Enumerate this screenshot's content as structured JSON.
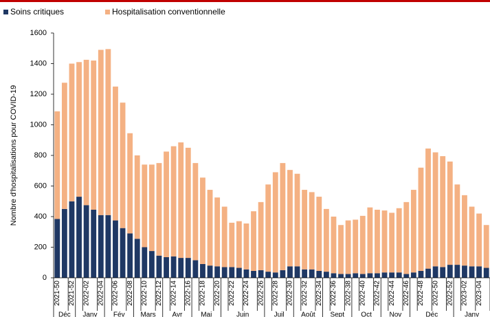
{
  "chart_data": {
    "type": "stacked_bar",
    "y_label": "Nombre d'hospitalisations pour COVID-19",
    "categories": [
      "2021-50",
      null,
      "2021-52",
      null,
      "2022-02",
      null,
      "2022-04",
      null,
      "2022-06",
      null,
      "2022-08",
      null,
      "2022-10",
      null,
      "2022-12",
      null,
      "2022-14",
      null,
      "2022-16",
      null,
      "2022-18",
      null,
      "2022-20",
      null,
      "2022-22",
      null,
      "2022-24",
      null,
      "2022-26",
      null,
      "2022-28",
      null,
      "2022-30",
      null,
      "2022-32",
      null,
      "2022-34",
      null,
      "2022-36",
      null,
      "2022-38",
      null,
      "2022-40",
      null,
      "2022-42",
      null,
      "2022-44",
      null,
      "2022-46",
      null,
      "2022-48",
      null,
      "2022-50",
      null,
      "2022-52",
      null,
      "2023-02",
      null,
      "2023-04",
      null
    ],
    "month_groups": {
      "labels": [
        "Déc",
        "Janv",
        "Fév",
        "Mars",
        "Avr",
        "Mai",
        "Juin",
        "Juil",
        "Août",
        "Sept",
        "Oct",
        "Nov",
        "Déc",
        "Janv"
      ],
      "starts": [
        0,
        3,
        7,
        11,
        15,
        19,
        23,
        29,
        33,
        37,
        41,
        45,
        49,
        55
      ]
    },
    "series": [
      {
        "name": "Soins critiques",
        "color": "#1f3864",
        "values": [
          385,
          450,
          500,
          530,
          475,
          445,
          410,
          410,
          375,
          325,
          290,
          255,
          200,
          175,
          145,
          135,
          140,
          130,
          130,
          115,
          90,
          80,
          75,
          70,
          70,
          65,
          55,
          45,
          50,
          40,
          35,
          50,
          75,
          75,
          55,
          55,
          45,
          40,
          30,
          25,
          25,
          30,
          25,
          30,
          30,
          35,
          35,
          35,
          25,
          35,
          45,
          60,
          75,
          70,
          85,
          85,
          80,
          75,
          75,
          65
        ]
      },
      {
        "name": "Hospitalisation conventionnelle",
        "color": "#f4b183",
        "values": [
          703,
          825,
          900,
          880,
          950,
          975,
          1080,
          1085,
          875,
          820,
          655,
          545,
          540,
          565,
          605,
          690,
          720,
          755,
          720,
          635,
          565,
          495,
          450,
          395,
          290,
          305,
          300,
          390,
          445,
          570,
          655,
          700,
          630,
          605,
          520,
          505,
          485,
          410,
          370,
          320,
          350,
          350,
          380,
          430,
          415,
          405,
          390,
          420,
          470,
          540,
          675,
          785,
          745,
          725,
          675,
          525,
          460,
          390,
          345,
          280
        ]
      }
    ],
    "ylim": [
      0,
      1600
    ],
    "yticks": [
      0,
      200,
      400,
      600,
      800,
      1000,
      1200,
      1400,
      1600
    ],
    "legend": "top-left"
  }
}
